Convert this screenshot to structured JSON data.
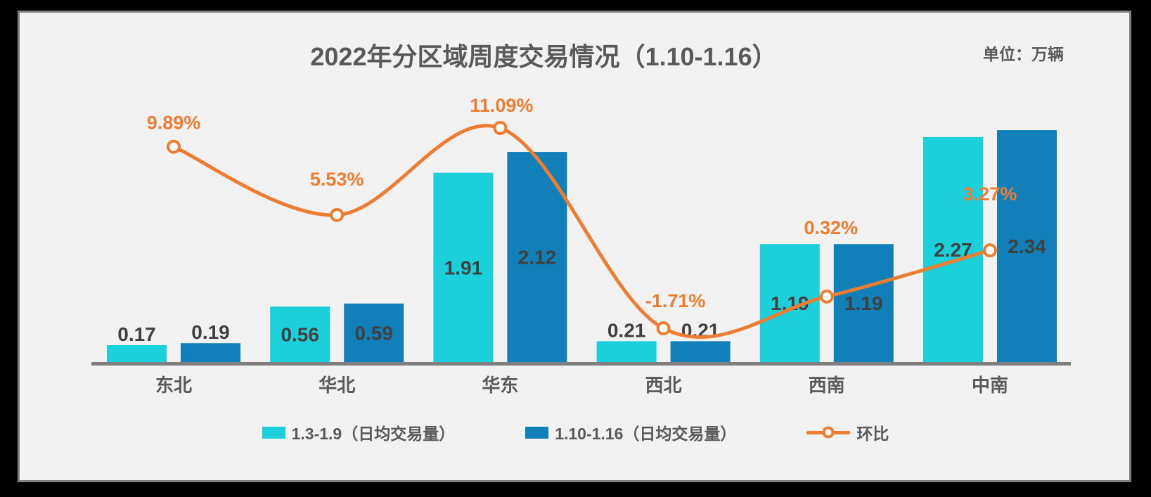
{
  "header": {
    "title": "2022年分区域周度交易情况（1.10-1.16）",
    "unit_label": "单位：万辆"
  },
  "chart_data": {
    "type": "bar",
    "subtype": "grouped-bars-with-smooth-line-overlay",
    "title": "2022年分区域周度交易情况（1.10-1.16）",
    "unit": "万辆",
    "categories": [
      "东北",
      "华北",
      "华东",
      "西北",
      "西南",
      "中南"
    ],
    "series": [
      {
        "name": "1.3-1.9（日均交易量）",
        "type": "bar",
        "color": "#1BD0DB",
        "values": [
          0.17,
          0.56,
          1.91,
          0.21,
          1.19,
          2.27
        ],
        "labels": [
          "0.17",
          "0.56",
          "1.91",
          "0.21",
          "1.19",
          "2.27"
        ]
      },
      {
        "name": "1.10-1.16（日均交易量）",
        "type": "bar",
        "color": "#1180B8",
        "values": [
          0.19,
          0.59,
          2.12,
          0.21,
          1.19,
          2.34
        ],
        "labels": [
          "0.19",
          "0.59",
          "2.12",
          "0.21",
          "1.19",
          "2.34"
        ]
      },
      {
        "name": "环比",
        "type": "line",
        "color": "#ED7D31",
        "values": [
          9.89,
          5.53,
          11.09,
          -1.71,
          0.32,
          3.27
        ],
        "labels": [
          "9.89%",
          "5.53%",
          "11.09%",
          "-1.71%",
          "0.32%",
          "3.27%"
        ]
      }
    ],
    "axes": {
      "x_visible": true,
      "y_visible": false,
      "gridlines": false
    },
    "legend_position": "bottom",
    "colors": {
      "outer_background": "#000000",
      "plot_background": "#F2F2F2",
      "panel_border": "#808080",
      "axis_line": "#7F7F7F",
      "title_text": "#595959",
      "value_label_text": "#404040",
      "category_text": "#595959",
      "line_label_text": "#ED7D31",
      "marker_fill": "#FFFFFF"
    }
  }
}
